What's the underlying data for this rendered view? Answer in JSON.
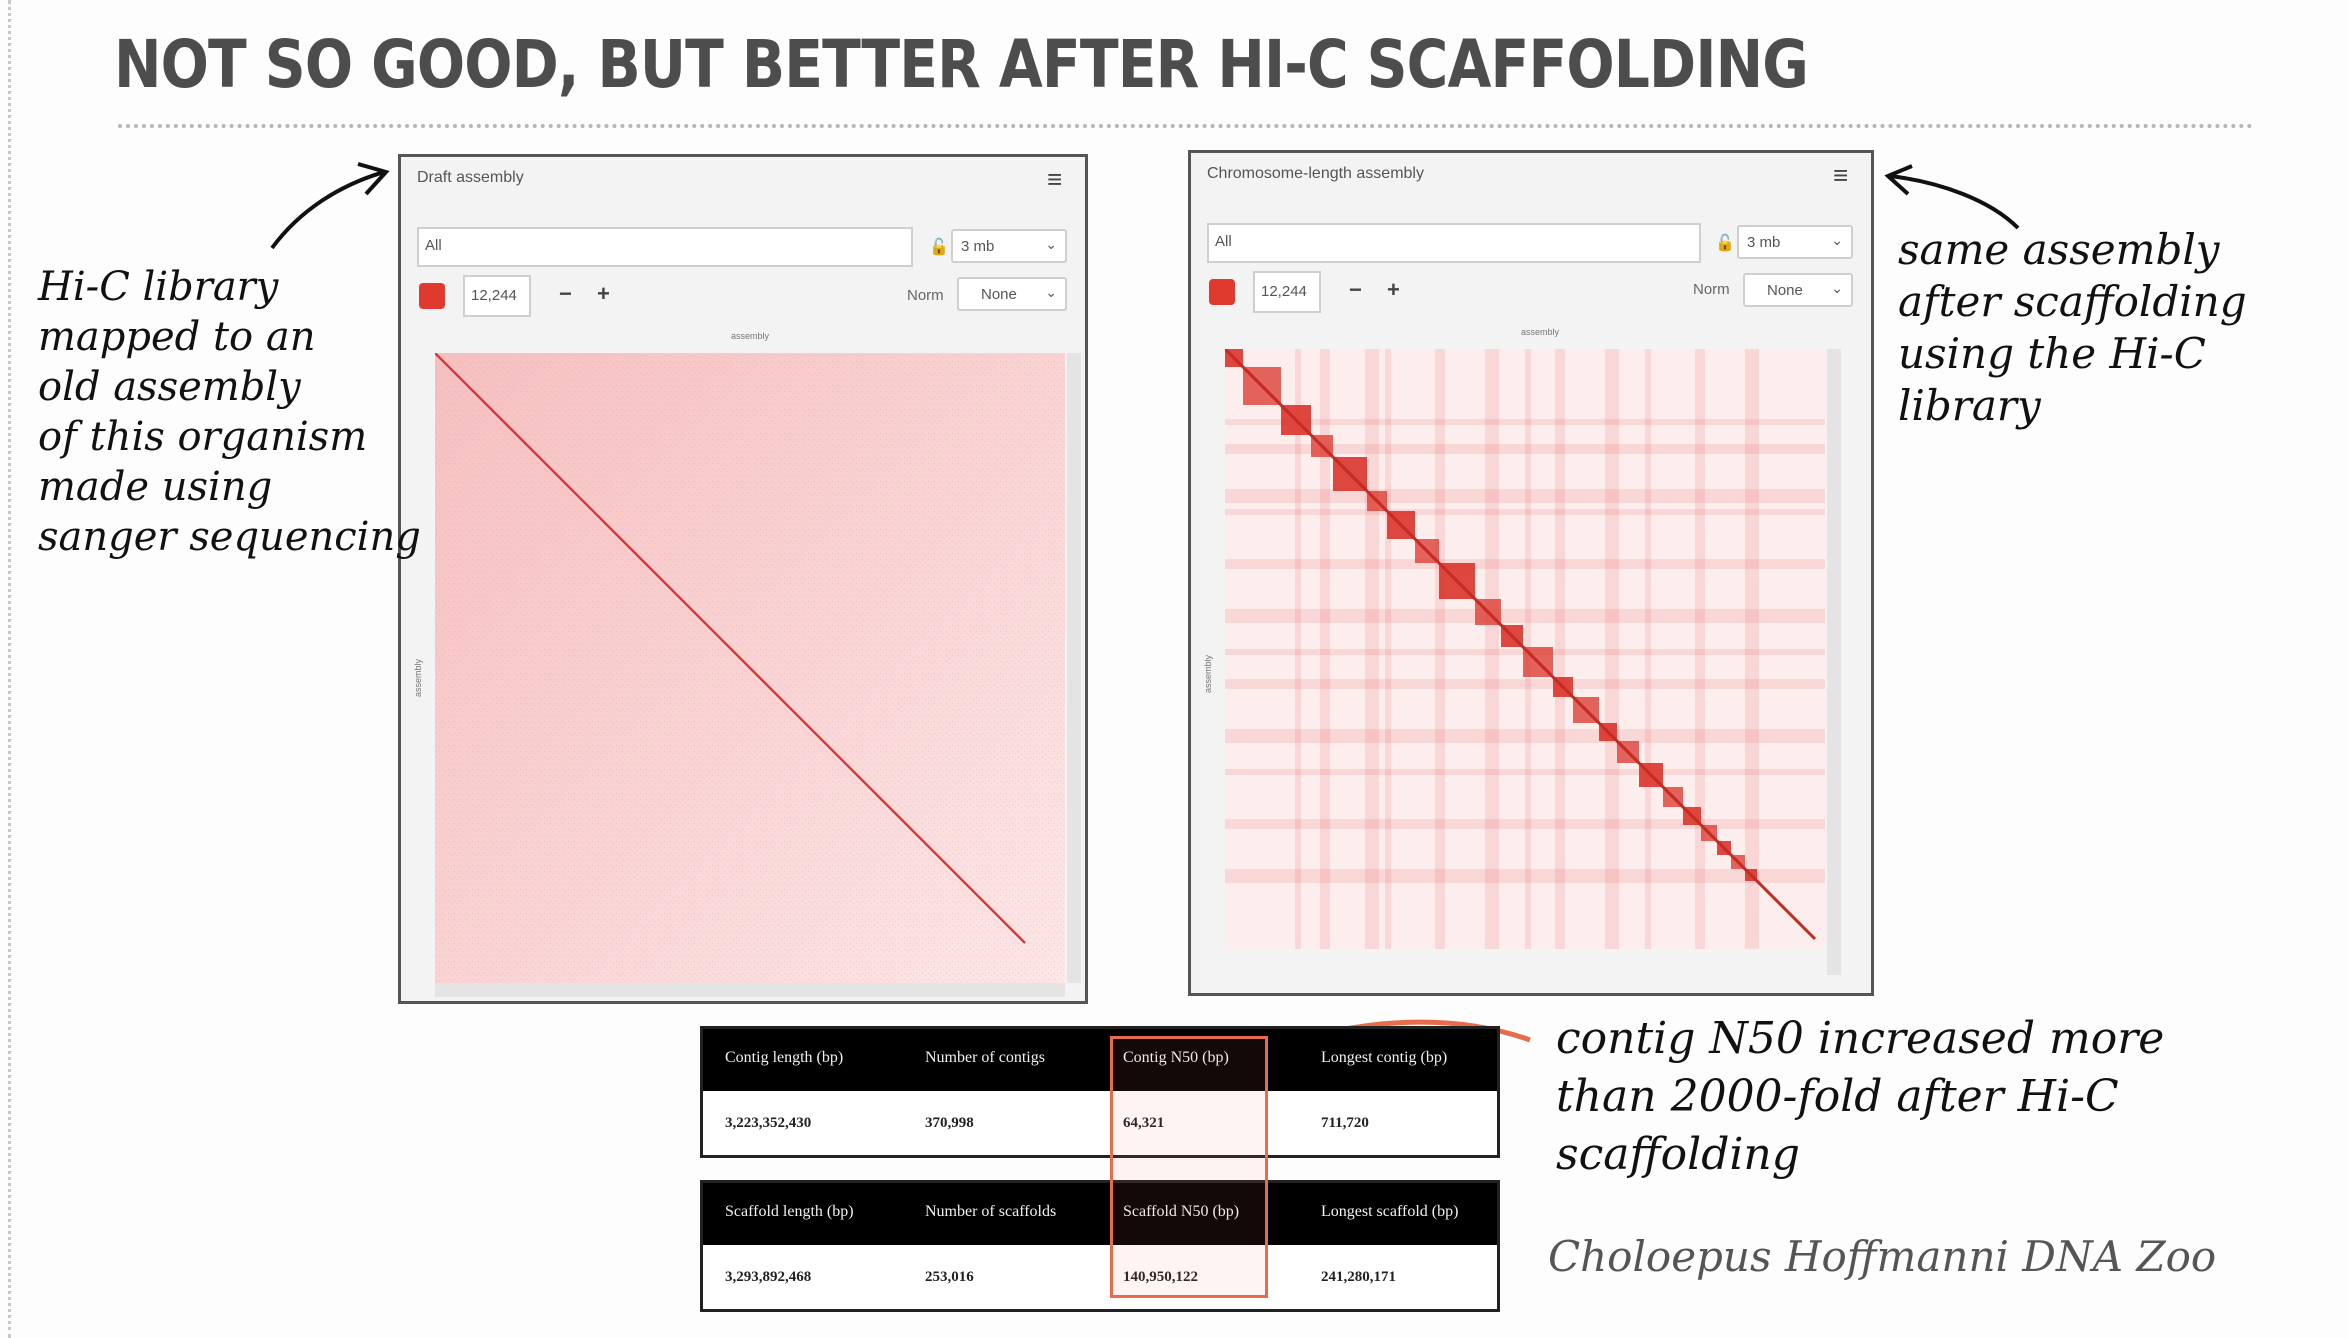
{
  "slide": {
    "title": "NOT SO GOOD, BUT BETTER AFTER HI-C SCAFFOLDING"
  },
  "left_panel": {
    "title": "Draft assembly",
    "search_value": "All",
    "resolution": "3 mb",
    "count": "12,244",
    "minus": "−",
    "plus": "+",
    "norm_label": "Norm",
    "norm_value": "None",
    "axis_label": "assembly",
    "heatmap_color": "#e03a2f"
  },
  "right_panel": {
    "title": "Chromosome-length assembly",
    "search_value": "All",
    "resolution": "3 mb",
    "count": "12,244",
    "minus": "−",
    "plus": "+",
    "norm_label": "Norm",
    "norm_value": "None",
    "axis_label": "assembly",
    "heatmap_color": "#e03a2f"
  },
  "annotations": {
    "left_note": [
      "Hi-C library",
      "mapped to an",
      "old assembly",
      "of this organism",
      "made using",
      "sanger sequencing"
    ],
    "right_note": [
      "same assembly",
      "after scaffolding",
      "using the Hi-C",
      "library"
    ],
    "bottom_note": [
      "contig N50 increased more",
      "than 2000-fold after Hi-C",
      "scaffolding"
    ],
    "highlight_color": "#e56d4b"
  },
  "contig_table": {
    "headers": [
      "Contig length (bp)",
      "Number of contigs",
      "Contig N50 (bp)",
      "Longest contig (bp)"
    ],
    "values": [
      "3,223,352,430",
      "370,998",
      "64,321",
      "711,720"
    ]
  },
  "scaffold_table": {
    "headers": [
      "Scaffold length (bp)",
      "Number of scaffolds",
      "Scaffold N50 (bp)",
      "Longest scaffold (bp)"
    ],
    "values": [
      "3,293,892,468",
      "253,016",
      "140,950,122",
      "241,280,171"
    ]
  },
  "caption": "Choloepus Hoffmanni DNA Zoo"
}
